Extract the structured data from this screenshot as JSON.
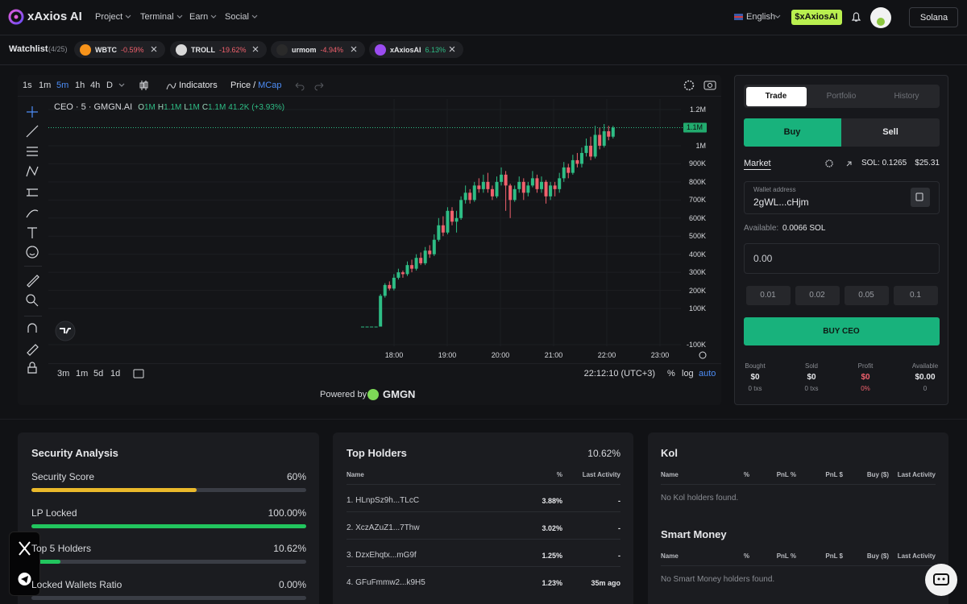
{
  "nav": {
    "brand": "xAxios AI",
    "menu": [
      "Project",
      "Terminal",
      "Earn",
      "Social"
    ],
    "language": "English",
    "token_button": "$xAxiosAI",
    "network": "Solana"
  },
  "watchlist": {
    "label": "Watchlist",
    "count": "(4/25)",
    "items": [
      {
        "symbol": "WBTC",
        "change": "-0.59%"
      },
      {
        "symbol": "TROLL",
        "change": "-19.62%"
      },
      {
        "symbol": "urmom",
        "change": "-4.94%"
      },
      {
        "symbol": "xAxiosAI",
        "change": "6.13%"
      }
    ]
  },
  "chart": {
    "intervals": [
      "1s",
      "1m",
      "5m",
      "1h",
      "4h",
      "D"
    ],
    "indicators": "Indicators",
    "price_label": "Price",
    "separator": "/",
    "mcap_label": "MCap",
    "pair": "CEO · 5 · GMGN.AI",
    "ohlc": [
      {
        "key": "O",
        "value": "1M"
      },
      {
        "key": "H",
        "value": "1.1M"
      },
      {
        "key": "L",
        "value": "1M"
      },
      {
        "key": "C",
        "value": "1.1M"
      }
    ],
    "change": "41.2K (+3.93%)",
    "ylim": [
      -109000,
      1258000
    ],
    "yticks": [
      {
        "value": 1200000,
        "label": "1.2M"
      },
      {
        "value": 1000000,
        "label": "1M"
      },
      {
        "value": 900000,
        "label": "900K"
      },
      {
        "value": 800000,
        "label": "800K"
      },
      {
        "value": 700000,
        "label": "700K"
      },
      {
        "value": 600000,
        "label": "600K"
      },
      {
        "value": 500000,
        "label": "500K"
      },
      {
        "value": 400000,
        "label": "400K"
      },
      {
        "value": 300000,
        "label": "300K"
      },
      {
        "value": 200000,
        "label": "200K"
      },
      {
        "value": 100000,
        "label": "100K"
      },
      {
        "value": -100000,
        "label": "-100K"
      }
    ],
    "price_tag": {
      "value": 1100000,
      "label": "1.1M"
    },
    "xticks": [
      "18:00",
      "19:00",
      "20:00",
      "21:00",
      "22:00",
      "23:00"
    ],
    "candles": [
      [
        0,
        0,
        0,
        0
      ],
      [
        0,
        0,
        0,
        0
      ],
      [
        0,
        0,
        0,
        0
      ],
      [
        0,
        0,
        0,
        0
      ],
      [
        0,
        180000,
        0,
        170000
      ],
      [
        170000,
        240000,
        160000,
        230000
      ],
      [
        230000,
        250000,
        200000,
        210000
      ],
      [
        210000,
        290000,
        200000,
        270000
      ],
      [
        270000,
        320000,
        260000,
        300000
      ],
      [
        300000,
        310000,
        270000,
        290000
      ],
      [
        290000,
        360000,
        280000,
        340000
      ],
      [
        340000,
        370000,
        300000,
        320000
      ],
      [
        320000,
        400000,
        310000,
        380000
      ],
      [
        380000,
        410000,
        340000,
        350000
      ],
      [
        350000,
        440000,
        340000,
        420000
      ],
      [
        420000,
        450000,
        380000,
        400000
      ],
      [
        400000,
        510000,
        390000,
        480000
      ],
      [
        480000,
        600000,
        470000,
        560000
      ],
      [
        560000,
        610000,
        500000,
        520000
      ],
      [
        520000,
        660000,
        510000,
        640000
      ],
      [
        640000,
        660000,
        560000,
        580000
      ],
      [
        580000,
        640000,
        520000,
        600000
      ],
      [
        600000,
        720000,
        590000,
        700000
      ],
      [
        700000,
        780000,
        680000,
        740000
      ],
      [
        740000,
        760000,
        680000,
        700000
      ],
      [
        700000,
        800000,
        690000,
        780000
      ],
      [
        780000,
        820000,
        740000,
        760000
      ],
      [
        760000,
        840000,
        740000,
        800000
      ],
      [
        800000,
        850000,
        740000,
        760000
      ],
      [
        760000,
        780000,
        700000,
        720000
      ],
      [
        720000,
        830000,
        710000,
        800000
      ],
      [
        800000,
        880000,
        780000,
        840000
      ],
      [
        840000,
        860000,
        640000,
        780000
      ],
      [
        780000,
        790000,
        600000,
        700000
      ],
      [
        700000,
        780000,
        690000,
        760000
      ],
      [
        760000,
        830000,
        740000,
        800000
      ],
      [
        800000,
        820000,
        700000,
        740000
      ],
      [
        740000,
        800000,
        720000,
        780000
      ],
      [
        780000,
        860000,
        770000,
        820000
      ],
      [
        820000,
        840000,
        740000,
        760000
      ],
      [
        760000,
        830000,
        740000,
        800000
      ],
      [
        800000,
        810000,
        680000,
        720000
      ],
      [
        720000,
        800000,
        700000,
        780000
      ],
      [
        780000,
        800000,
        720000,
        760000
      ],
      [
        760000,
        850000,
        740000,
        820000
      ],
      [
        820000,
        910000,
        800000,
        880000
      ],
      [
        880000,
        900000,
        820000,
        850000
      ],
      [
        850000,
        950000,
        840000,
        920000
      ],
      [
        920000,
        960000,
        880000,
        900000
      ],
      [
        900000,
        990000,
        880000,
        960000
      ],
      [
        960000,
        1040000,
        940000,
        1000000
      ],
      [
        1000000,
        1050000,
        920000,
        940000
      ],
      [
        940000,
        1110000,
        930000,
        1060000
      ],
      [
        1060000,
        1100000,
        980000,
        1000000
      ],
      [
        1000000,
        1120000,
        990000,
        1080000
      ],
      [
        1080000,
        1110000,
        1030000,
        1050000
      ],
      [
        1050000,
        1110000,
        1040000,
        1100000
      ]
    ],
    "up_color": "#2ebd85",
    "down_color": "#f0616d",
    "ranges": [
      "3m",
      "1m",
      "5d",
      "1d"
    ],
    "clock": "22:12:10 (UTC+3)",
    "scale_options": [
      "%",
      "log",
      "auto"
    ],
    "powered_by": "Powered by",
    "provider": "GMGN"
  },
  "trade": {
    "tabs": [
      "Trade",
      "Portfolio",
      "History"
    ],
    "sides": [
      "Buy",
      "Sell"
    ],
    "order_type": "Market",
    "sol_balance": "SOL: 0.1265",
    "usd_balance": "$25.31",
    "wallet_label": "Wallet address",
    "wallet": "2gWL...cHjm",
    "available_label": "Available:",
    "available": "0.0066 SOL",
    "amount": "0.00",
    "presets": [
      "0.01",
      "0.02",
      "0.05",
      "0.1"
    ],
    "submit": "BUY CEO",
    "stats": [
      {
        "label": "Bought",
        "value": "$0",
        "sub": "0 txs",
        "color": "#e6e7ea"
      },
      {
        "label": "Sold",
        "value": "$0",
        "sub": "0 txs",
        "color": "#e6e7ea"
      },
      {
        "label": "Profit",
        "value": "$0",
        "sub": "0%",
        "color": "#f0616d"
      },
      {
        "label": "Available",
        "value": "$0.00",
        "sub": "0",
        "color": "#e6e7ea"
      }
    ]
  },
  "security": {
    "title": "Security Analysis",
    "rows": [
      {
        "label": "Security Score",
        "value": 60,
        "value_label": "60%",
        "color": "#eab92b"
      },
      {
        "label": "LP Locked",
        "value": 100,
        "value_label": "100.00%",
        "color": "#22c55e"
      },
      {
        "label": "Top 5 Holders",
        "value": 10.62,
        "value_label": "10.62%",
        "color": "#22c55e"
      },
      {
        "label": "Locked Wallets Ratio",
        "value": 0,
        "value_label": "0.00%",
        "color": "#22c55e"
      }
    ]
  },
  "top_holders": {
    "title": "Top Holders",
    "total": "10.62%",
    "columns": [
      "Name",
      "%",
      "Last Activity"
    ],
    "rows": [
      [
        "1. HLnpSz9h...TLcC",
        "3.88%",
        "-"
      ],
      [
        "2. XczAZuZ1...7Thw",
        "3.02%",
        "-"
      ],
      [
        "3. DzxEhqtx...mG9f",
        "1.25%",
        "-"
      ],
      [
        "4. GFuFmmw2...k9H5",
        "1.23%",
        "35m ago"
      ]
    ]
  },
  "kol": {
    "title": "Kol",
    "columns": [
      "Name",
      "%",
      "PnL %",
      "PnL $",
      "Buy ($)",
      "Last Activity"
    ],
    "empty": "No Kol holders found."
  },
  "smart_money": {
    "title": "Smart Money",
    "columns": [
      "Name",
      "%",
      "PnL %",
      "PnL $",
      "Buy ($)",
      "Last Activity"
    ],
    "empty": "No Smart Money holders found."
  }
}
